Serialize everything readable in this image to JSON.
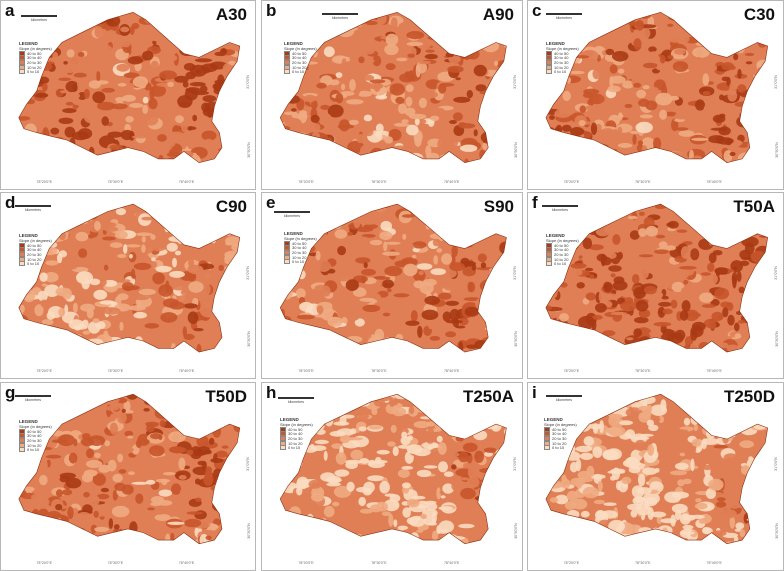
{
  "colors": {
    "c1": "#a83a14",
    "c2": "#c8552b",
    "c3": "#e07e55",
    "c4": "#f0ab82",
    "c5": "#fbdcc0",
    "panel_border": "#b7b7b7"
  },
  "legend": {
    "title": "LEGEND",
    "subtitle": "Slope (in degrees)",
    "classes": [
      "40 to 50",
      "30 to 40",
      "20 to 30",
      "10 to 20",
      "0 to 10"
    ]
  },
  "scale_unit": "kilometres",
  "lon_ticks": [
    "78°20'0\"E",
    "78°30'0\"E",
    "78°40'0\"E"
  ],
  "lat_ticks": [
    "31°0'0\"N",
    "30°50'0\"N"
  ],
  "panels": [
    {
      "letter": "a",
      "code": "A30"
    },
    {
      "letter": "b",
      "code": "A90"
    },
    {
      "letter": "c",
      "code": "C30"
    },
    {
      "letter": "d",
      "code": "C90"
    },
    {
      "letter": "e",
      "code": "S90"
    },
    {
      "letter": "f",
      "code": "T50A"
    },
    {
      "letter": "g",
      "code": "T50D"
    },
    {
      "letter": "h",
      "code": "T250A"
    },
    {
      "letter": "i",
      "code": "T250D"
    }
  ]
}
